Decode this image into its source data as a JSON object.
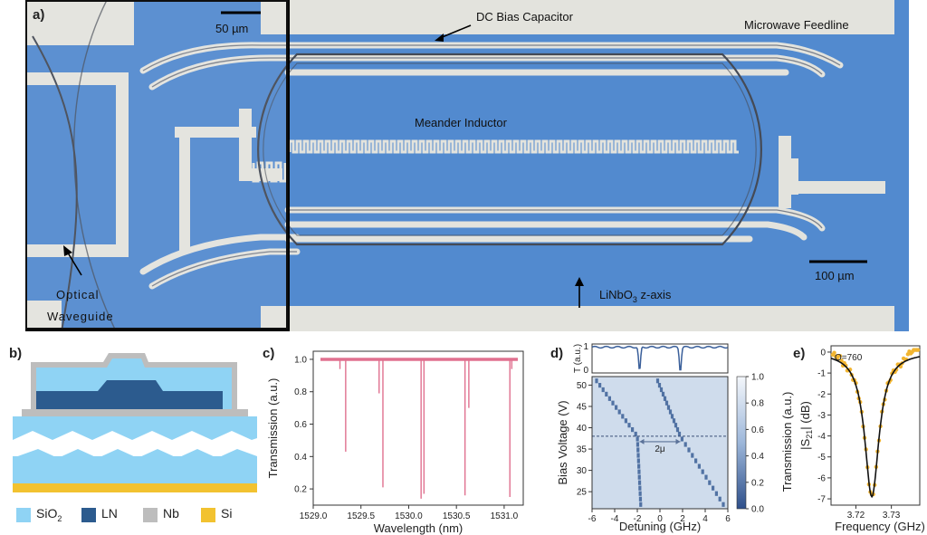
{
  "panel_a": {
    "label": "a)",
    "scalebar_small": "50 µm",
    "scalebar_large": "100 µm",
    "annotations": {
      "dc_bias": "DC Bias Capacitor",
      "feedline": "Microwave Feedline",
      "meander": "Meander Inductor",
      "optical_1": "Optical",
      "optical_2": "Waveguide",
      "axis_prefix": "LiNbO",
      "axis_sub": "3",
      "axis_suffix": " z-axis"
    },
    "colors": {
      "substrate": "#4d86cc",
      "metal": "#e3e3dd",
      "ring": "#454a55"
    }
  },
  "panel_b": {
    "label": "b)",
    "legend": [
      {
        "name": "SiO",
        "sub": "2",
        "color": "#8fd3f4"
      },
      {
        "name": "LN",
        "sub": "",
        "color": "#2c5b8e"
      },
      {
        "name": "Nb",
        "sub": "",
        "color": "#bdbdbd"
      },
      {
        "name": "Si",
        "sub": "",
        "color": "#f2c230"
      }
    ]
  },
  "panel_c": {
    "label": "c)",
    "chart_data": {
      "type": "line",
      "xlabel": "Wavelength (nm)",
      "ylabel": "Transmission (a.u.)",
      "xlim": [
        1529.0,
        1531.2
      ],
      "ylim": [
        0.1,
        1.05
      ],
      "xticks": [
        1529.0,
        1529.5,
        1530.0,
        1530.5,
        1531.0
      ],
      "xtick_labels": [
        "1529.0",
        "1529.5",
        "1530.0",
        "1530.5",
        "1531.0"
      ],
      "yticks": [
        0.2,
        0.4,
        0.6,
        0.8,
        1.0
      ],
      "ytick_labels": [
        "0.2",
        "0.4",
        "0.6",
        "0.8",
        "1.0"
      ],
      "baseline": 1.0,
      "dips": [
        {
          "x": 1529.28,
          "y": 0.94
        },
        {
          "x": 1529.34,
          "y": 0.43
        },
        {
          "x": 1529.69,
          "y": 0.79
        },
        {
          "x": 1529.73,
          "y": 0.21
        },
        {
          "x": 1530.13,
          "y": 0.14
        },
        {
          "x": 1530.16,
          "y": 0.17
        },
        {
          "x": 1530.59,
          "y": 0.16
        },
        {
          "x": 1530.63,
          "y": 0.7
        },
        {
          "x": 1531.06,
          "y": 0.15
        },
        {
          "x": 1531.08,
          "y": 0.94
        }
      ],
      "color": "#e0708f"
    }
  },
  "panel_d": {
    "label": "d)",
    "chart_data": {
      "type": "heatmap",
      "top_ylabel": "T (a.u.)",
      "top_yticks": [
        "0",
        "1"
      ],
      "xlabel": "Detuning (GHz)",
      "ylabel": "Bias Voltage (V)",
      "xlim": [
        -6,
        6
      ],
      "ylim": [
        21,
        52
      ],
      "xticks": [
        -6,
        -4,
        -2,
        0,
        2,
        4,
        6
      ],
      "xtick_labels": [
        "-6",
        "-4",
        "-2",
        "0",
        "2",
        "4",
        "6"
      ],
      "yticks": [
        25,
        30,
        35,
        40,
        45,
        50
      ],
      "ytick_labels": [
        "25",
        "30",
        "35",
        "40",
        "45",
        "50"
      ],
      "colorbar_label": "Transmission (a.u.)",
      "colorbar_ticks": [
        "0.0",
        "0.2",
        "0.4",
        "0.6",
        "0.8",
        "1.0"
      ],
      "dashed_line_voltage": 38,
      "annotation": "2μ",
      "trace_dips": [
        -1.8,
        1.8
      ],
      "mode_a": [
        {
          "v": 51,
          "x": -5.6
        },
        {
          "v": 38,
          "x": -2.0
        },
        {
          "v": 22,
          "x": -1.7
        }
      ],
      "mode_b": [
        {
          "v": 51,
          "x": -0.2
        },
        {
          "v": 38,
          "x": 1.8
        },
        {
          "v": 22,
          "x": 5.6
        }
      ]
    }
  },
  "panel_e": {
    "label": "e)",
    "chart_data": {
      "type": "scatter",
      "title": "Q=760",
      "xlabel": "Frequency (GHz)",
      "ylabel": "|S21| (dB)",
      "ylabel_main": "|S",
      "ylabel_sub": "21",
      "ylabel_tail": "| (dB)",
      "xlim": [
        3.713,
        3.738
      ],
      "ylim": [
        -7.3,
        0.3
      ],
      "xticks": [
        3.72,
        3.73
      ],
      "xtick_labels": [
        "3.72",
        "3.73"
      ],
      "yticks": [
        0,
        -1,
        -2,
        -3,
        -4,
        -5,
        -6,
        -7
      ],
      "ytick_labels": [
        "0",
        "-1",
        "-2",
        "-3",
        "-4",
        "-5",
        "-6",
        "-7"
      ],
      "center": 3.7245,
      "depth": 6.9,
      "fwhm": 0.0049,
      "data_color": "#f2b530",
      "fit_color": "#111111"
    }
  }
}
